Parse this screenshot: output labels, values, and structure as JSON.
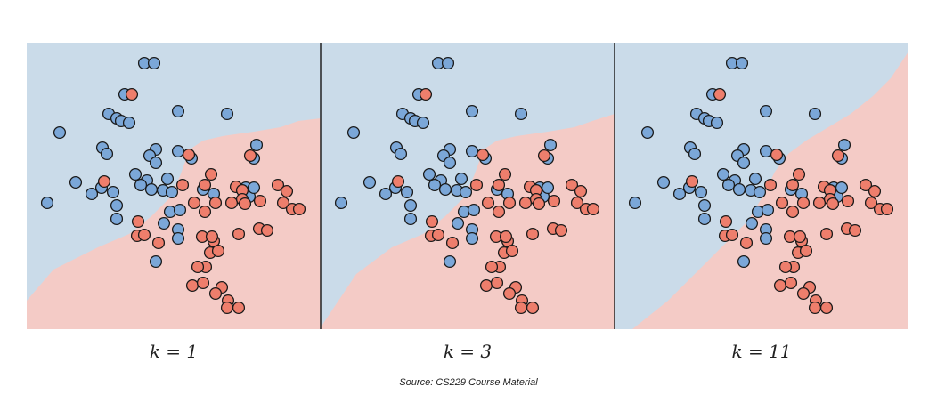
{
  "colors": {
    "blue_region": "#cadbe9",
    "red_region": "#f4cbc6",
    "blue_point": "#7ba7d8",
    "red_point": "#ee7e6c",
    "point_stroke": "#1a1a1a",
    "divider": "#222222"
  },
  "source": "Source: CS229 Course Material",
  "chart_data": [
    {
      "type": "scatter",
      "caption": "k = 1",
      "xlim": [
        0,
        330
      ],
      "ylim": [
        0,
        322
      ],
      "classes": [
        "blue",
        "red"
      ],
      "boundary": [
        [
          0,
          290
        ],
        [
          30,
          255
        ],
        [
          80,
          230
        ],
        [
          115,
          215
        ],
        [
          140,
          195
        ],
        [
          160,
          175
        ],
        [
          172,
          150
        ],
        [
          183,
          120
        ],
        [
          198,
          110
        ],
        [
          220,
          105
        ],
        [
          255,
          100
        ],
        [
          285,
          95
        ],
        [
          305,
          88
        ],
        [
          330,
          85
        ]
      ],
      "points": {
        "blue": [
          [
            132,
            23
          ],
          [
            143,
            23
          ],
          [
            110,
            58
          ],
          [
            92,
            80
          ],
          [
            101,
            85
          ],
          [
            106,
            88
          ],
          [
            115,
            90
          ],
          [
            170,
            77
          ],
          [
            225,
            80
          ],
          [
            37,
            101
          ],
          [
            85,
            118
          ],
          [
            90,
            125
          ],
          [
            145,
            120
          ],
          [
            138,
            127
          ],
          [
            145,
            135
          ],
          [
            170,
            122
          ],
          [
            185,
            130
          ],
          [
            258,
            115
          ],
          [
            255,
            130
          ],
          [
            122,
            148
          ],
          [
            135,
            155
          ],
          [
            128,
            160
          ],
          [
            140,
            165
          ],
          [
            158,
            153
          ],
          [
            55,
            157
          ],
          [
            84,
            163
          ],
          [
            97,
            168
          ],
          [
            153,
            166
          ],
          [
            163,
            168
          ],
          [
            198,
            165
          ],
          [
            210,
            170
          ],
          [
            246,
            163
          ],
          [
            250,
            173
          ],
          [
            255,
            163
          ],
          [
            73,
            170
          ],
          [
            23,
            180
          ],
          [
            101,
            183
          ],
          [
            161,
            190
          ],
          [
            172,
            188
          ],
          [
            101,
            198
          ],
          [
            154,
            203
          ],
          [
            170,
            210
          ],
          [
            170,
            220
          ],
          [
            145,
            246
          ]
        ],
        "red": [
          [
            118,
            58
          ],
          [
            182,
            126
          ],
          [
            251,
            127
          ],
          [
            207,
            148
          ],
          [
            87,
            156
          ],
          [
            175,
            160
          ],
          [
            200,
            160
          ],
          [
            235,
            162
          ],
          [
            242,
            166
          ],
          [
            282,
            160
          ],
          [
            292,
            167
          ],
          [
            188,
            180
          ],
          [
            212,
            180
          ],
          [
            230,
            180
          ],
          [
            242,
            176
          ],
          [
            245,
            181
          ],
          [
            288,
            180
          ],
          [
            298,
            187
          ],
          [
            306,
            187
          ],
          [
            125,
            201
          ],
          [
            262,
            178
          ],
          [
            200,
            190
          ],
          [
            124,
            217
          ],
          [
            132,
            216
          ],
          [
            148,
            225
          ],
          [
            210,
            223
          ],
          [
            197,
            218
          ],
          [
            208,
            218
          ],
          [
            238,
            215
          ],
          [
            261,
            209
          ],
          [
            270,
            211
          ],
          [
            206,
            236
          ],
          [
            215,
            234
          ],
          [
            201,
            252
          ],
          [
            192,
            252
          ],
          [
            186,
            273
          ],
          [
            198,
            270
          ],
          [
            219,
            275
          ],
          [
            212,
            282
          ],
          [
            226,
            290
          ],
          [
            225,
            298
          ],
          [
            238,
            298
          ]
        ]
      }
    },
    {
      "type": "scatter",
      "caption": "k = 3",
      "xlim": [
        0,
        330
      ],
      "ylim": [
        0,
        322
      ],
      "classes": [
        "blue",
        "red"
      ],
      "boundary": [
        [
          0,
          320
        ],
        [
          40,
          260
        ],
        [
          80,
          230
        ],
        [
          115,
          215
        ],
        [
          140,
          195
        ],
        [
          160,
          175
        ],
        [
          172,
          150
        ],
        [
          183,
          120
        ],
        [
          198,
          110
        ],
        [
          220,
          105
        ],
        [
          255,
          100
        ],
        [
          285,
          95
        ],
        [
          305,
          88
        ],
        [
          330,
          80
        ]
      ],
      "points": {
        "blue": [
          [
            132,
            23
          ],
          [
            143,
            23
          ],
          [
            110,
            58
          ],
          [
            92,
            80
          ],
          [
            101,
            85
          ],
          [
            106,
            88
          ],
          [
            115,
            90
          ],
          [
            170,
            77
          ],
          [
            225,
            80
          ],
          [
            37,
            101
          ],
          [
            85,
            118
          ],
          [
            90,
            125
          ],
          [
            145,
            120
          ],
          [
            138,
            127
          ],
          [
            145,
            135
          ],
          [
            170,
            122
          ],
          [
            185,
            130
          ],
          [
            258,
            115
          ],
          [
            255,
            130
          ],
          [
            122,
            148
          ],
          [
            135,
            155
          ],
          [
            128,
            160
          ],
          [
            140,
            165
          ],
          [
            158,
            153
          ],
          [
            55,
            157
          ],
          [
            84,
            163
          ],
          [
            97,
            168
          ],
          [
            153,
            166
          ],
          [
            163,
            168
          ],
          [
            198,
            165
          ],
          [
            210,
            170
          ],
          [
            246,
            163
          ],
          [
            250,
            173
          ],
          [
            255,
            163
          ],
          [
            73,
            170
          ],
          [
            23,
            180
          ],
          [
            101,
            183
          ],
          [
            161,
            190
          ],
          [
            172,
            188
          ],
          [
            101,
            198
          ],
          [
            154,
            203
          ],
          [
            170,
            210
          ],
          [
            170,
            220
          ],
          [
            145,
            246
          ]
        ],
        "red": [
          [
            118,
            58
          ],
          [
            182,
            126
          ],
          [
            251,
            127
          ],
          [
            207,
            148
          ],
          [
            87,
            156
          ],
          [
            175,
            160
          ],
          [
            200,
            160
          ],
          [
            235,
            162
          ],
          [
            242,
            166
          ],
          [
            282,
            160
          ],
          [
            292,
            167
          ],
          [
            188,
            180
          ],
          [
            212,
            180
          ],
          [
            230,
            180
          ],
          [
            242,
            176
          ],
          [
            245,
            181
          ],
          [
            288,
            180
          ],
          [
            298,
            187
          ],
          [
            306,
            187
          ],
          [
            125,
            201
          ],
          [
            262,
            178
          ],
          [
            200,
            190
          ],
          [
            124,
            217
          ],
          [
            132,
            216
          ],
          [
            148,
            225
          ],
          [
            210,
            223
          ],
          [
            197,
            218
          ],
          [
            208,
            218
          ],
          [
            238,
            215
          ],
          [
            261,
            209
          ],
          [
            270,
            211
          ],
          [
            206,
            236
          ],
          [
            215,
            234
          ],
          [
            201,
            252
          ],
          [
            192,
            252
          ],
          [
            186,
            273
          ],
          [
            198,
            270
          ],
          [
            219,
            275
          ],
          [
            212,
            282
          ],
          [
            226,
            290
          ],
          [
            225,
            298
          ],
          [
            238,
            298
          ]
        ]
      }
    },
    {
      "type": "scatter",
      "caption": "k = 11",
      "xlim": [
        0,
        330
      ],
      "ylim": [
        0,
        322
      ],
      "classes": [
        "blue",
        "red"
      ],
      "boundary": [
        [
          20,
          322
        ],
        [
          60,
          290
        ],
        [
          100,
          250
        ],
        [
          130,
          220
        ],
        [
          150,
          200
        ],
        [
          165,
          175
        ],
        [
          180,
          145
        ],
        [
          195,
          125
        ],
        [
          215,
          110
        ],
        [
          240,
          95
        ],
        [
          265,
          80
        ],
        [
          290,
          60
        ],
        [
          310,
          40
        ],
        [
          330,
          10
        ]
      ],
      "points": {
        "blue": [
          [
            132,
            23
          ],
          [
            143,
            23
          ],
          [
            110,
            58
          ],
          [
            92,
            80
          ],
          [
            101,
            85
          ],
          [
            106,
            88
          ],
          [
            115,
            90
          ],
          [
            170,
            77
          ],
          [
            225,
            80
          ],
          [
            37,
            101
          ],
          [
            85,
            118
          ],
          [
            90,
            125
          ],
          [
            145,
            120
          ],
          [
            138,
            127
          ],
          [
            145,
            135
          ],
          [
            170,
            122
          ],
          [
            185,
            130
          ],
          [
            258,
            115
          ],
          [
            255,
            130
          ],
          [
            122,
            148
          ],
          [
            135,
            155
          ],
          [
            128,
            160
          ],
          [
            140,
            165
          ],
          [
            158,
            153
          ],
          [
            55,
            157
          ],
          [
            84,
            163
          ],
          [
            97,
            168
          ],
          [
            153,
            166
          ],
          [
            163,
            168
          ],
          [
            198,
            165
          ],
          [
            210,
            170
          ],
          [
            246,
            163
          ],
          [
            250,
            173
          ],
          [
            255,
            163
          ],
          [
            73,
            170
          ],
          [
            23,
            180
          ],
          [
            101,
            183
          ],
          [
            161,
            190
          ],
          [
            172,
            188
          ],
          [
            101,
            198
          ],
          [
            154,
            203
          ],
          [
            170,
            210
          ],
          [
            170,
            220
          ],
          [
            145,
            246
          ]
        ],
        "red": [
          [
            118,
            58
          ],
          [
            182,
            126
          ],
          [
            251,
            127
          ],
          [
            207,
            148
          ],
          [
            87,
            156
          ],
          [
            175,
            160
          ],
          [
            200,
            160
          ],
          [
            235,
            162
          ],
          [
            242,
            166
          ],
          [
            282,
            160
          ],
          [
            292,
            167
          ],
          [
            188,
            180
          ],
          [
            212,
            180
          ],
          [
            230,
            180
          ],
          [
            242,
            176
          ],
          [
            245,
            181
          ],
          [
            288,
            180
          ],
          [
            298,
            187
          ],
          [
            306,
            187
          ],
          [
            125,
            201
          ],
          [
            262,
            178
          ],
          [
            200,
            190
          ],
          [
            124,
            217
          ],
          [
            132,
            216
          ],
          [
            148,
            225
          ],
          [
            210,
            223
          ],
          [
            197,
            218
          ],
          [
            208,
            218
          ],
          [
            238,
            215
          ],
          [
            261,
            209
          ],
          [
            270,
            211
          ],
          [
            206,
            236
          ],
          [
            215,
            234
          ],
          [
            201,
            252
          ],
          [
            192,
            252
          ],
          [
            186,
            273
          ],
          [
            198,
            270
          ],
          [
            219,
            275
          ],
          [
            212,
            282
          ],
          [
            226,
            290
          ],
          [
            225,
            298
          ],
          [
            238,
            298
          ]
        ]
      }
    }
  ]
}
